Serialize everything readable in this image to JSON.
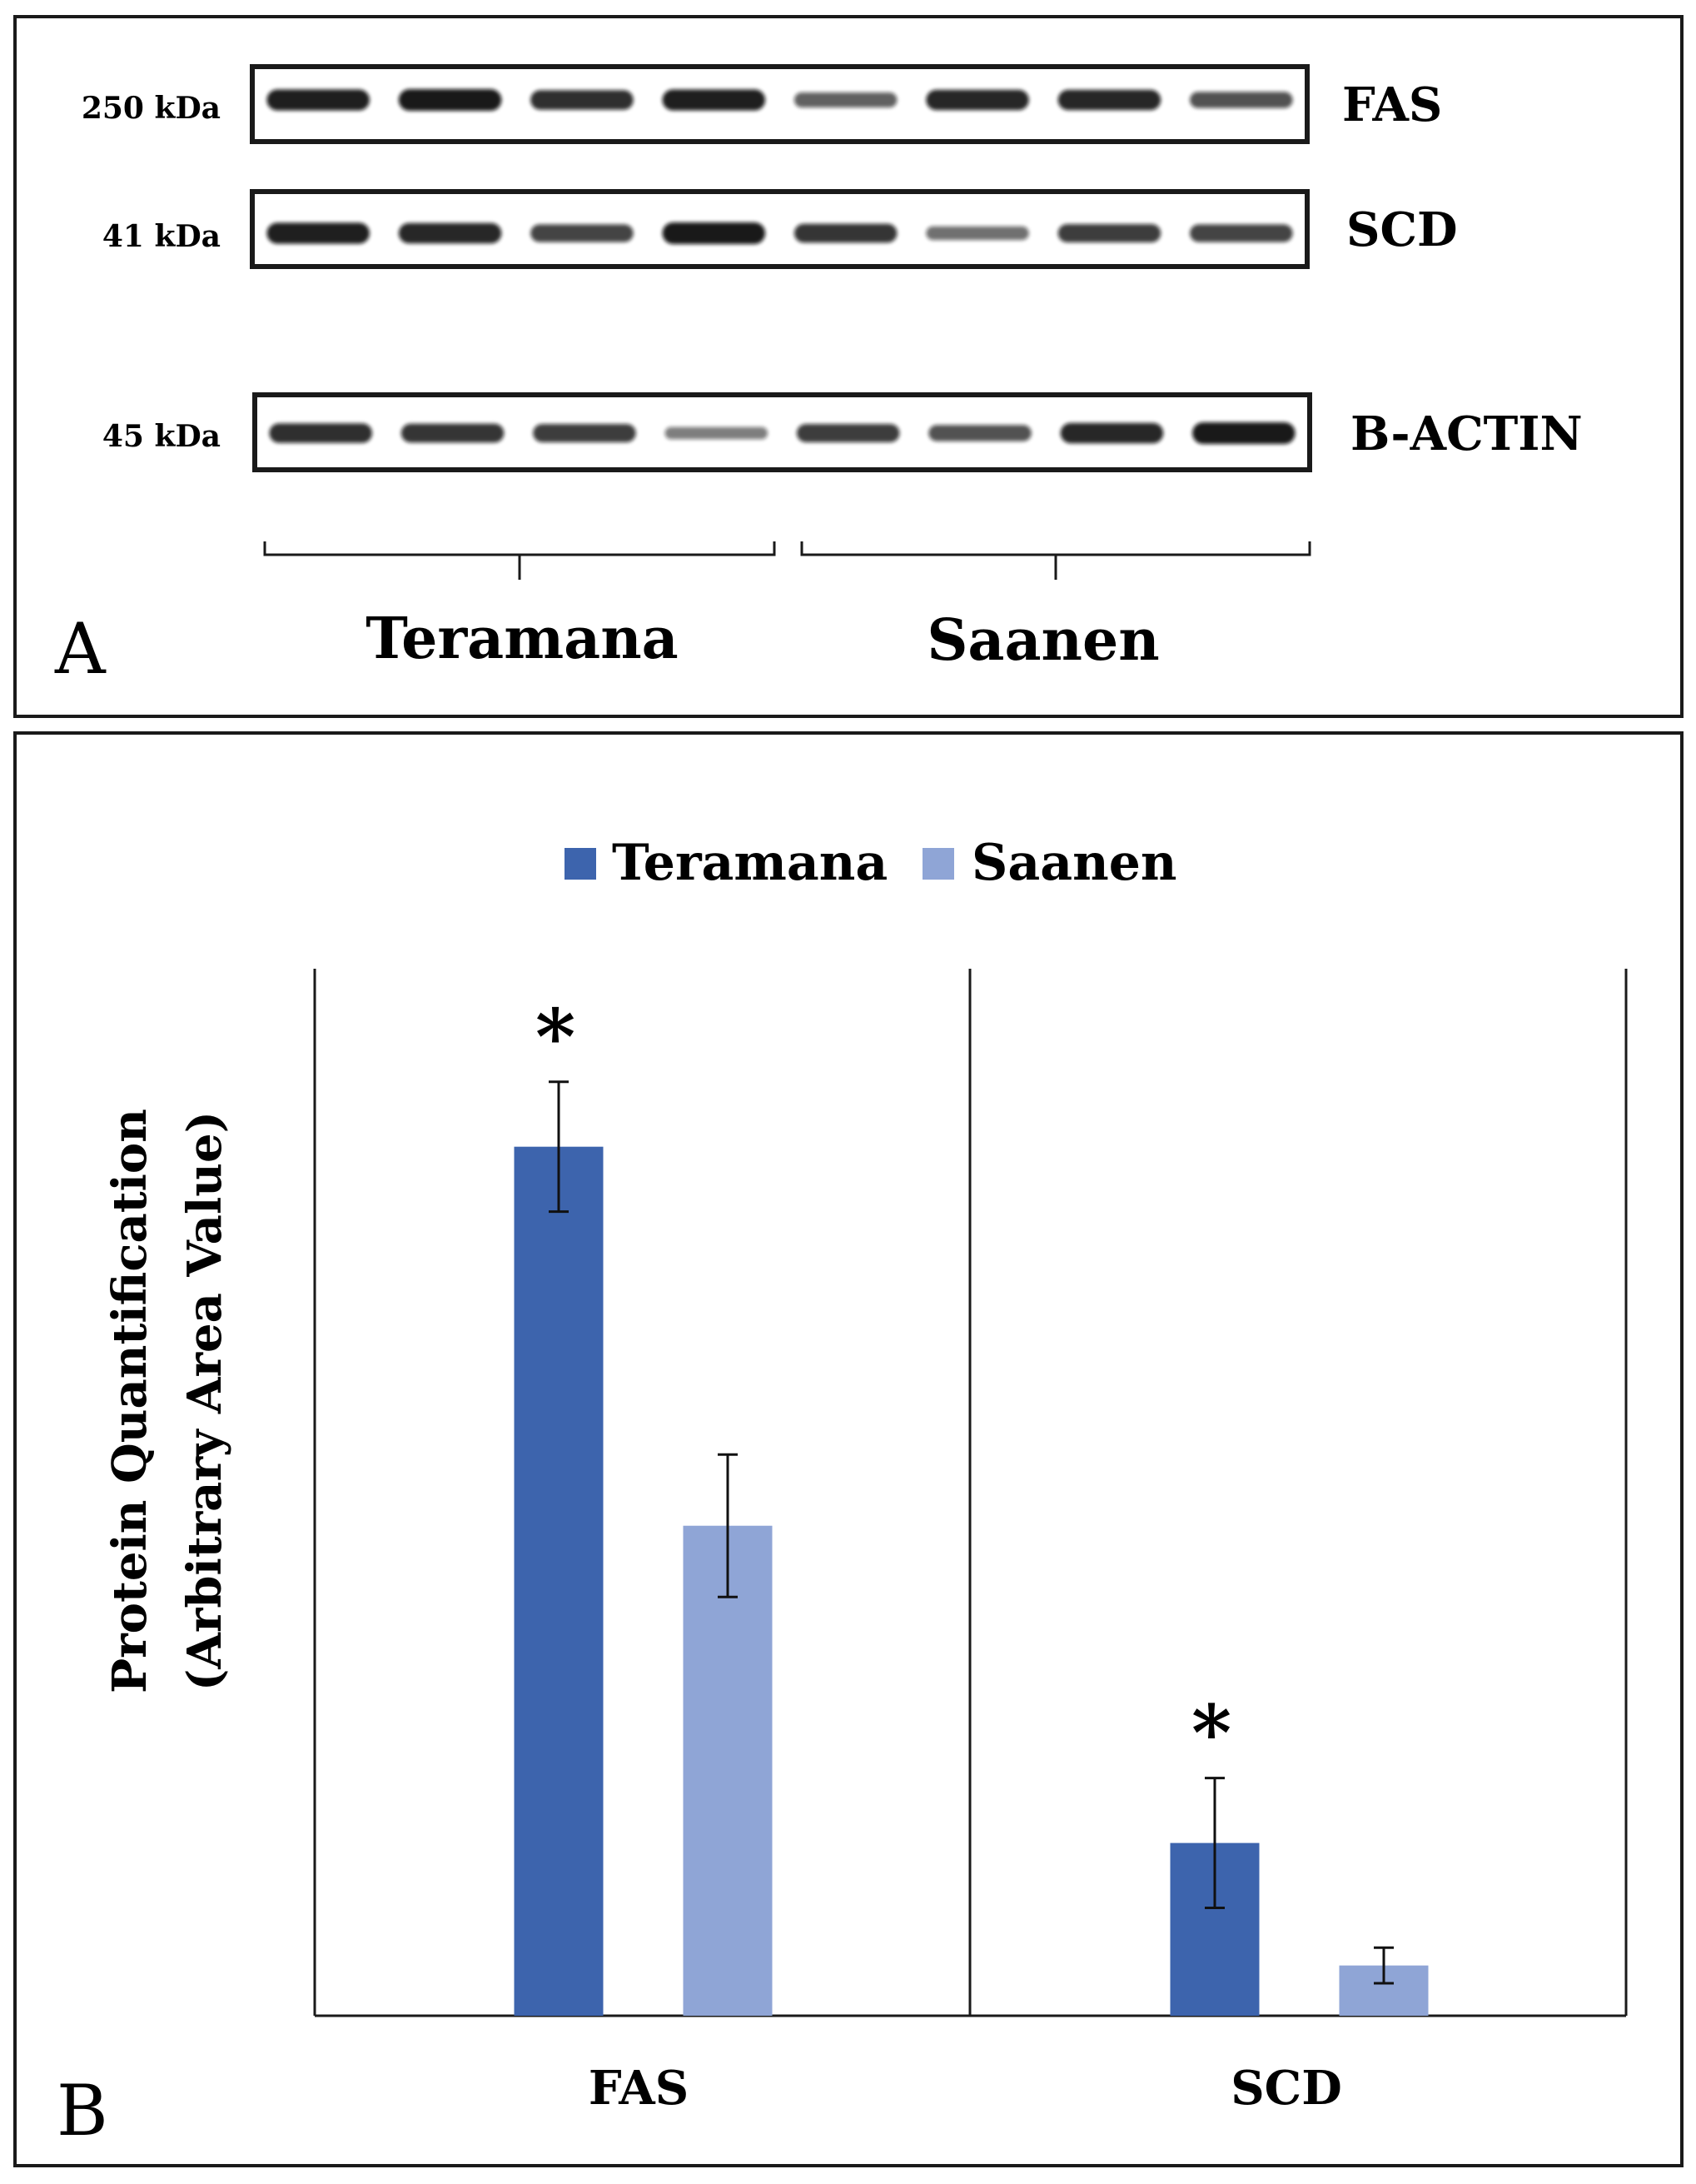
{
  "panel_a": {
    "label": "A",
    "blots": [
      {
        "marker": "250 kDa",
        "protein": "FAS",
        "bands": [
          0.95,
          1.0,
          0.85,
          0.95,
          0.5,
          0.9,
          0.9,
          0.6
        ]
      },
      {
        "marker": "41 kDa",
        "protein": "SCD",
        "bands": [
          0.95,
          0.9,
          0.7,
          1.0,
          0.8,
          0.4,
          0.75,
          0.7
        ]
      },
      {
        "marker": "45 kDa",
        "protein": "B-ACTIN",
        "bands": [
          0.85,
          0.8,
          0.75,
          0.3,
          0.75,
          0.6,
          0.9,
          1.0
        ]
      }
    ],
    "groups": [
      "Teramana",
      "Saanen"
    ]
  },
  "panel_b": {
    "label": "B",
    "significance_marker": "*"
  },
  "colors": {
    "teramana": "#3d64ad",
    "saanen": "#8fa5d6",
    "band": "#111111",
    "frame": "#1a1a1a"
  },
  "chart_data": {
    "type": "bar",
    "title": "",
    "categories": [
      "FAS",
      "SCD"
    ],
    "series": [
      {
        "name": "Teramana",
        "values": [
          8.3,
          1.65
        ],
        "errors": [
          0.62,
          0.62
        ],
        "significant": [
          true,
          true
        ]
      },
      {
        "name": "Saanen",
        "values": [
          4.68,
          0.48
        ],
        "errors": [
          0.68,
          0.17
        ],
        "significant": [
          false,
          false
        ]
      }
    ],
    "xlabel": "",
    "ylabel": [
      "Protein Quantification",
      "(Arbitrary Area Value)"
    ],
    "ylim": [
      0,
      10
    ],
    "grid": false,
    "legend": "top-center"
  }
}
